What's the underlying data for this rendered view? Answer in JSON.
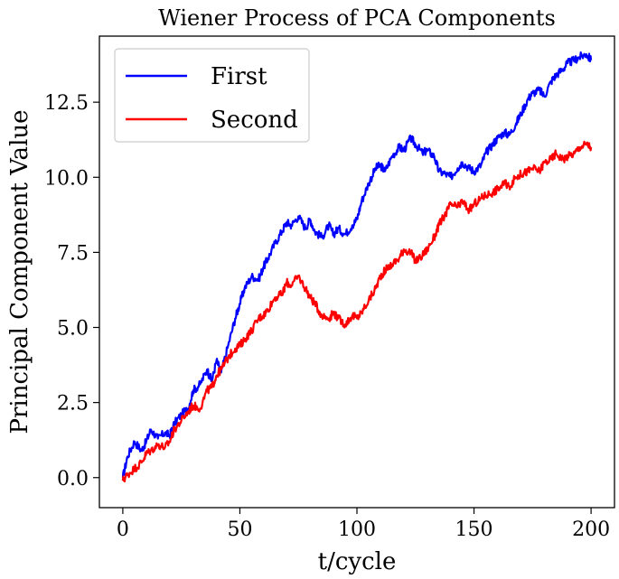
{
  "chart_data": {
    "type": "line",
    "title": "Wiener Process of PCA Components",
    "xlabel": "t/cycle",
    "ylabel": "Principal Component Value",
    "xlim": [
      -10,
      210
    ],
    "ylim": [
      -1.0,
      14.7
    ],
    "xticks": [
      0,
      50,
      100,
      150,
      200
    ],
    "yticks": [
      0.0,
      2.5,
      5.0,
      7.5,
      10.0,
      12.5
    ],
    "xtick_labels": [
      "0",
      "50",
      "100",
      "150",
      "200"
    ],
    "ytick_labels": [
      "0.0",
      "2.5",
      "5.0",
      "7.5",
      "10.0",
      "12.5"
    ],
    "grid": false,
    "legend_position": "top-left",
    "series": [
      {
        "name": "First",
        "color": "#0000ff",
        "x": [
          0,
          2,
          5,
          8,
          10,
          12,
          15,
          18,
          20,
          22,
          25,
          28,
          30,
          33,
          36,
          38,
          40,
          42,
          45,
          48,
          50,
          52,
          55,
          58,
          60,
          62,
          65,
          68,
          70,
          72,
          75,
          78,
          80,
          82,
          85,
          88,
          90,
          92,
          95,
          98,
          100,
          102,
          105,
          108,
          110,
          112,
          115,
          118,
          120,
          123,
          125,
          128,
          130,
          133,
          135,
          138,
          140,
          143,
          145,
          148,
          150,
          153,
          155,
          158,
          160,
          163,
          165,
          168,
          170,
          173,
          175,
          178,
          180,
          183,
          185,
          188,
          190,
          193,
          195,
          198,
          200
        ],
        "y": [
          0.0,
          0.7,
          1.2,
          0.9,
          1.2,
          1.6,
          1.3,
          1.5,
          1.4,
          1.8,
          2.1,
          2.3,
          2.9,
          3.1,
          3.6,
          3.2,
          3.9,
          3.5,
          4.4,
          5.3,
          5.8,
          6.3,
          6.7,
          6.6,
          7.0,
          7.3,
          7.8,
          8.2,
          8.5,
          8.4,
          8.7,
          8.3,
          8.6,
          8.2,
          8.0,
          8.4,
          8.1,
          8.3,
          8.1,
          8.4,
          8.6,
          9.2,
          9.8,
          10.3,
          10.4,
          10.2,
          10.7,
          11.0,
          10.9,
          11.3,
          11.1,
          10.8,
          10.9,
          10.7,
          10.2,
          10.1,
          10.0,
          10.3,
          10.5,
          10.3,
          10.2,
          10.4,
          10.8,
          11.1,
          11.3,
          11.5,
          11.4,
          11.8,
          12.1,
          12.6,
          12.8,
          12.9,
          12.7,
          13.2,
          13.4,
          13.6,
          13.8,
          13.9,
          14.0,
          14.1,
          13.9
        ]
      },
      {
        "name": "Second",
        "color": "#ff0000",
        "x": [
          0,
          2,
          5,
          8,
          10,
          12,
          15,
          18,
          20,
          22,
          25,
          28,
          30,
          33,
          36,
          38,
          40,
          42,
          45,
          48,
          50,
          52,
          55,
          58,
          60,
          62,
          65,
          68,
          70,
          72,
          75,
          78,
          80,
          82,
          85,
          88,
          90,
          92,
          95,
          98,
          100,
          102,
          105,
          108,
          110,
          112,
          115,
          118,
          120,
          123,
          125,
          128,
          130,
          133,
          135,
          138,
          140,
          143,
          145,
          148,
          150,
          153,
          155,
          158,
          160,
          163,
          165,
          168,
          170,
          173,
          175,
          178,
          180,
          183,
          185,
          188,
          190,
          193,
          195,
          198,
          200
        ],
        "y": [
          -0.1,
          0.1,
          0.3,
          0.5,
          0.8,
          0.9,
          1.1,
          1.0,
          1.2,
          1.6,
          1.9,
          2.2,
          2.4,
          2.3,
          2.9,
          3.0,
          3.4,
          3.6,
          4.0,
          4.3,
          4.4,
          4.6,
          4.9,
          5.3,
          5.4,
          5.6,
          6.0,
          6.1,
          6.5,
          6.4,
          6.7,
          6.3,
          6.0,
          5.8,
          5.4,
          5.3,
          5.5,
          5.3,
          5.1,
          5.4,
          5.3,
          5.5,
          5.9,
          6.3,
          6.7,
          6.9,
          7.1,
          7.3,
          7.6,
          7.5,
          7.2,
          7.4,
          7.6,
          8.0,
          8.4,
          8.8,
          9.1,
          9.0,
          9.2,
          8.9,
          9.1,
          9.3,
          9.4,
          9.5,
          9.6,
          9.8,
          9.7,
          10.0,
          10.1,
          10.2,
          10.3,
          10.2,
          10.5,
          10.6,
          10.8,
          10.6,
          10.7,
          10.8,
          11.0,
          11.1,
          11.0
        ]
      }
    ]
  }
}
